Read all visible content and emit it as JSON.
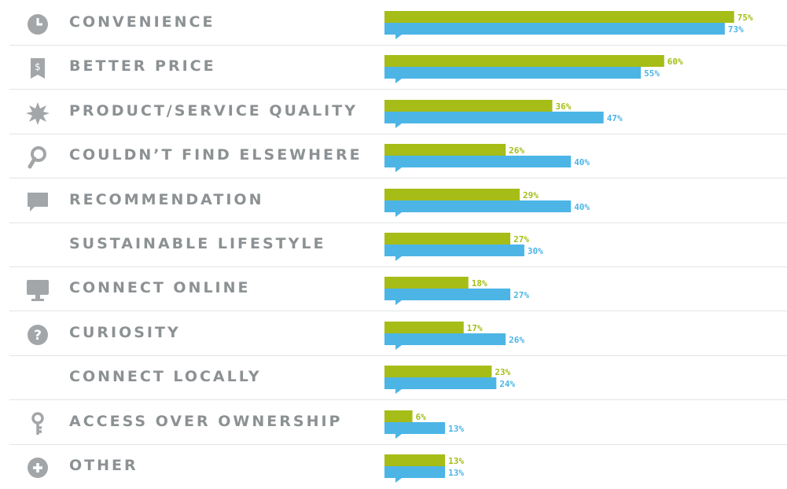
{
  "colors": {
    "green": "#a6bd17",
    "blue": "#4cb5e6",
    "icon": "#a3a6a8",
    "label": "#8c9193"
  },
  "chart_data": {
    "type": "bar",
    "orientation": "horizontal",
    "value_suffix": "%",
    "categories": [
      "CONVENIENCE",
      "BETTER PRICE",
      "PRODUCT/SERVICE QUALITY",
      "COULDN’T FIND ELSEWHERE",
      "RECOMMENDATION",
      "SUSTAINABLE LIFESTYLE",
      "CONNECT ONLINE",
      "CURIOSITY",
      "CONNECT LOCALLY",
      "ACCESS OVER OWNERSHIP",
      "OTHER"
    ],
    "icons": [
      "clock-icon",
      "price-tag-icon",
      "starburst-icon",
      "magnifier-icon",
      "speech-bubble-icon",
      "leaf-icon",
      "monitor-icon",
      "question-icon",
      "location-pin-icon",
      "key-icon",
      "plus-icon"
    ],
    "series": [
      {
        "color": "green",
        "values": [
          75,
          60,
          36,
          26,
          29,
          27,
          18,
          17,
          23,
          6,
          13
        ]
      },
      {
        "color": "blue",
        "values": [
          73,
          55,
          47,
          40,
          40,
          30,
          27,
          26,
          24,
          13,
          13
        ]
      }
    ],
    "xlim": [
      0,
      100
    ],
    "grid": false,
    "legend": "none"
  }
}
